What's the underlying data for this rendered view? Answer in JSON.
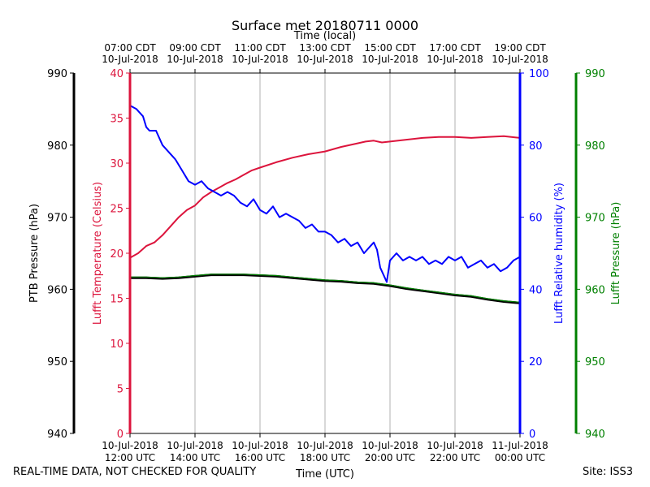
{
  "chart_data": {
    "type": "line",
    "title": "Surface met 20180711 0000",
    "top_axis_label": "Time (local)",
    "xlabel": "Time (UTC)",
    "x_range_hours_utc": [
      12,
      24
    ],
    "bottom_ticks": [
      {
        "hour": 12,
        "line1": "10-Jul-2018",
        "line2": "12:00 UTC"
      },
      {
        "hour": 14,
        "line1": "10-Jul-2018",
        "line2": "14:00 UTC"
      },
      {
        "hour": 16,
        "line1": "10-Jul-2018",
        "line2": "16:00 UTC"
      },
      {
        "hour": 18,
        "line1": "10-Jul-2018",
        "line2": "18:00 UTC"
      },
      {
        "hour": 20,
        "line1": "10-Jul-2018",
        "line2": "20:00 UTC"
      },
      {
        "hour": 22,
        "line1": "10-Jul-2018",
        "line2": "22:00 UTC"
      },
      {
        "hour": 24,
        "line1": "11-Jul-2018",
        "line2": "00:00 UTC"
      }
    ],
    "top_ticks": [
      {
        "hour": 12,
        "line1": "07:00 CDT",
        "line2": "10-Jul-2018"
      },
      {
        "hour": 14,
        "line1": "09:00 CDT",
        "line2": "10-Jul-2018"
      },
      {
        "hour": 16,
        "line1": "11:00 CDT",
        "line2": "10-Jul-2018"
      },
      {
        "hour": 18,
        "line1": "13:00 CDT",
        "line2": "10-Jul-2018"
      },
      {
        "hour": 20,
        "line1": "15:00 CDT",
        "line2": "10-Jul-2018"
      },
      {
        "hour": 22,
        "line1": "17:00 CDT",
        "line2": "10-Jul-2018"
      },
      {
        "hour": 24,
        "line1": "19:00 CDT",
        "line2": "10-Jul-2018"
      }
    ],
    "axes": {
      "ptb_pressure": {
        "label": "PTB Pressure (hPa)",
        "range": [
          940,
          990
        ],
        "ticks": [
          940,
          950,
          960,
          970,
          980,
          990
        ],
        "color": "#000000"
      },
      "temperature": {
        "label": "Lufft Temperature (Celsius)",
        "range": [
          0,
          40
        ],
        "ticks": [
          0,
          5,
          10,
          15,
          20,
          25,
          30,
          35,
          40
        ],
        "color": "#dc143c"
      },
      "humidity": {
        "label": "Lufft Relative humidity (%)",
        "range": [
          0,
          100
        ],
        "ticks": [
          0,
          20,
          40,
          60,
          80,
          100
        ],
        "color": "#0000ff"
      },
      "lufft_pressure": {
        "label": "Lufft Pressure (hPa)",
        "range": [
          940,
          990
        ],
        "ticks": [
          940,
          950,
          960,
          970,
          980,
          990
        ],
        "color": "#008000"
      }
    },
    "series": [
      {
        "name": "Lufft Temperature",
        "axis": "temperature",
        "color": "#dc143c",
        "x": [
          12.0,
          12.25,
          12.5,
          12.75,
          13.0,
          13.25,
          13.5,
          13.75,
          14.0,
          14.25,
          14.5,
          14.75,
          15.0,
          15.25,
          15.5,
          15.75,
          16.0,
          16.5,
          17.0,
          17.5,
          18.0,
          18.5,
          19.0,
          19.25,
          19.5,
          19.75,
          20.0,
          20.5,
          21.0,
          21.5,
          22.0,
          22.5,
          23.0,
          23.5,
          24.0
        ],
        "values": [
          19.5,
          20.0,
          20.8,
          21.2,
          22.0,
          23.0,
          24.0,
          24.8,
          25.3,
          26.2,
          26.8,
          27.3,
          27.8,
          28.2,
          28.7,
          29.2,
          29.5,
          30.1,
          30.6,
          31.0,
          31.3,
          31.8,
          32.2,
          32.4,
          32.5,
          32.3,
          32.4,
          32.6,
          32.8,
          32.9,
          32.9,
          32.8,
          32.9,
          33.0,
          32.8
        ]
      },
      {
        "name": "Lufft Relative humidity",
        "axis": "humidity",
        "color": "#0000ff",
        "x": [
          12.0,
          12.2,
          12.4,
          12.5,
          12.6,
          12.8,
          13.0,
          13.2,
          13.4,
          13.6,
          13.8,
          14.0,
          14.2,
          14.4,
          14.6,
          14.8,
          15.0,
          15.2,
          15.4,
          15.6,
          15.8,
          16.0,
          16.2,
          16.4,
          16.6,
          16.8,
          17.0,
          17.2,
          17.4,
          17.6,
          17.8,
          18.0,
          18.2,
          18.4,
          18.6,
          18.8,
          19.0,
          19.2,
          19.4,
          19.5,
          19.6,
          19.7,
          19.8,
          19.9,
          20.0,
          20.2,
          20.4,
          20.6,
          20.8,
          21.0,
          21.2,
          21.4,
          21.6,
          21.8,
          22.0,
          22.2,
          22.4,
          22.6,
          22.8,
          23.0,
          23.2,
          23.4,
          23.6,
          23.8,
          24.0
        ],
        "values": [
          91,
          90,
          88,
          85,
          84,
          84,
          80,
          78,
          76,
          73,
          70,
          69,
          70,
          68,
          67,
          66,
          67,
          66,
          64,
          63,
          65,
          62,
          61,
          63,
          60,
          61,
          60,
          59,
          57,
          58,
          56,
          56,
          55,
          53,
          54,
          52,
          53,
          50,
          52,
          53,
          51,
          46,
          44,
          42,
          48,
          50,
          48,
          49,
          48,
          49,
          47,
          48,
          47,
          49,
          48,
          49,
          46,
          47,
          48,
          46,
          47,
          45,
          46,
          48,
          49
        ]
      },
      {
        "name": "PTB Pressure",
        "axis": "ptb_pressure",
        "color": "#000000",
        "x": [
          12.0,
          12.5,
          13.0,
          13.5,
          14.0,
          14.5,
          15.0,
          15.5,
          16.0,
          16.5,
          17.0,
          17.5,
          18.0,
          18.5,
          19.0,
          19.5,
          20.0,
          20.5,
          21.0,
          21.5,
          22.0,
          22.5,
          23.0,
          23.5,
          24.0
        ],
        "values": [
          961.6,
          961.6,
          961.5,
          961.6,
          961.8,
          962.0,
          962.0,
          962.0,
          961.9,
          961.8,
          961.6,
          961.4,
          961.2,
          961.1,
          960.9,
          960.8,
          960.5,
          960.1,
          959.8,
          959.5,
          959.2,
          959.0,
          958.6,
          958.3,
          958.1
        ]
      },
      {
        "name": "Lufft Pressure",
        "axis": "lufft_pressure",
        "color": "#008000",
        "x": [
          12.0,
          12.5,
          13.0,
          13.5,
          14.0,
          14.5,
          15.0,
          15.5,
          16.0,
          16.5,
          17.0,
          17.5,
          18.0,
          18.5,
          19.0,
          19.5,
          20.0,
          20.5,
          21.0,
          21.5,
          22.0,
          22.5,
          23.0,
          23.5,
          24.0
        ],
        "values": [
          961.7,
          961.7,
          961.6,
          961.7,
          961.9,
          962.1,
          962.1,
          962.1,
          962.0,
          961.9,
          961.7,
          961.5,
          961.3,
          961.2,
          961.0,
          960.9,
          960.6,
          960.2,
          959.9,
          959.6,
          959.3,
          959.1,
          958.7,
          958.4,
          958.2
        ]
      }
    ]
  },
  "footer": {
    "disclaimer": "REAL-TIME DATA, NOT CHECKED FOR QUALITY",
    "site": "Site: ISS3"
  }
}
